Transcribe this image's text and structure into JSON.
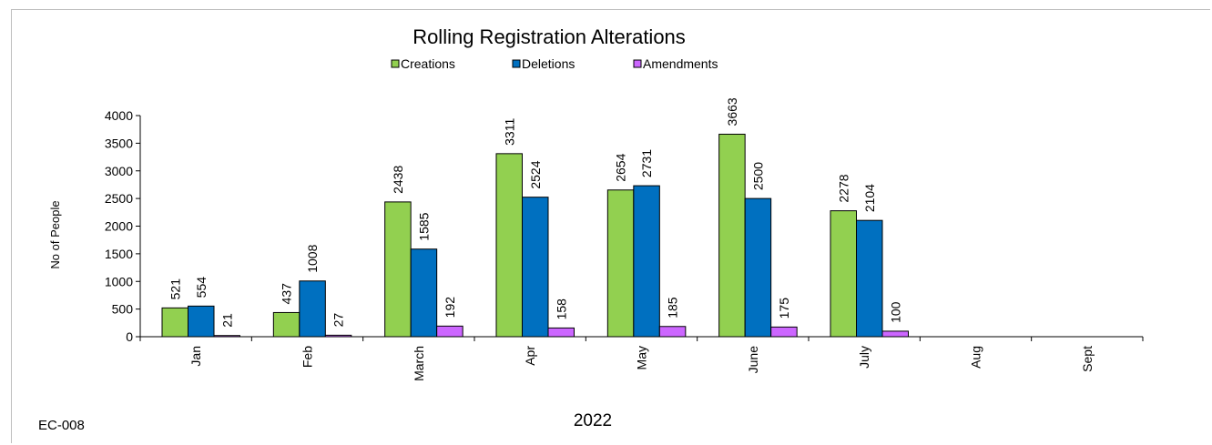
{
  "chart_data": {
    "type": "bar",
    "title": "Rolling Registration Alterations",
    "xlabel": "2022",
    "ylabel": "No of People",
    "ylim": [
      0,
      4000
    ],
    "yticks": [
      0,
      500,
      1000,
      1500,
      2000,
      2500,
      3000,
      3500,
      4000
    ],
    "categories": [
      "Jan",
      "Feb",
      "March",
      "Apr",
      "May",
      "June",
      "July",
      "Aug",
      "Sept"
    ],
    "series": [
      {
        "name": "Creations",
        "color": "#92d050",
        "values": [
          521,
          437,
          2438,
          3311,
          2654,
          3663,
          2278,
          null,
          null
        ]
      },
      {
        "name": "Deletions",
        "color": "#0070c0",
        "values": [
          554,
          1008,
          1585,
          2524,
          2731,
          2500,
          2104,
          null,
          null
        ]
      },
      {
        "name": "Amendments",
        "color": "#cc66ff",
        "values": [
          21,
          27,
          192,
          158,
          185,
          175,
          100,
          null,
          null
        ]
      }
    ],
    "legend_position": "top",
    "grid": false,
    "footnote": "EC-008"
  }
}
